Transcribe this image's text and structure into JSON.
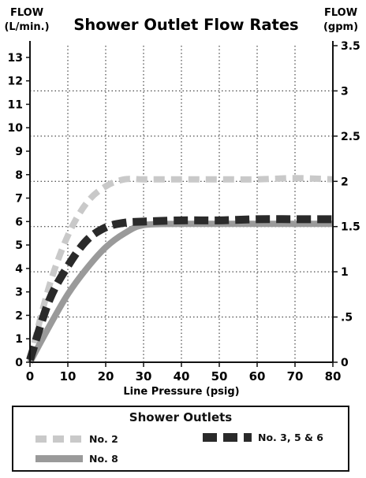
{
  "chart_data": {
    "type": "line",
    "title": "Shower Outlet Flow Rates",
    "ylabel_left": [
      "FLOW",
      "(L/min.)"
    ],
    "ylabel_right": [
      "FLOW",
      "(gpm)"
    ],
    "xlabel": "Line Pressure (psig)",
    "xlim": [
      0,
      80
    ],
    "ylim_left": [
      0,
      13.5
    ],
    "ylim_right": [
      0,
      3.5
    ],
    "x_ticks": [
      "0",
      "10",
      "20",
      "30",
      "40",
      "50",
      "60",
      "70",
      "80"
    ],
    "y_ticks_left": [
      "0",
      "1",
      "2",
      "3",
      "4",
      "5",
      "6",
      "7",
      "8",
      "9",
      "10",
      "11",
      "12",
      "13"
    ],
    "y_ticks_right": [
      "0",
      ".5",
      "1",
      "1.5",
      "2",
      "2.5",
      "3",
      "3.5"
    ],
    "grid": "dotted",
    "legend_title": "Shower Outlets",
    "series": [
      {
        "name": "No. 2",
        "style": "light-dashed",
        "color": "#c9c9c9",
        "x": [
          0,
          5,
          10,
          15,
          20,
          25,
          30,
          40,
          50,
          60,
          70,
          80
        ],
        "y": [
          0.1,
          3.2,
          5.4,
          6.8,
          7.5,
          7.8,
          7.8,
          7.8,
          7.8,
          7.8,
          7.85,
          7.8
        ]
      },
      {
        "name": "No. 8",
        "style": "solid",
        "color": "#9a9a9a",
        "x": [
          0,
          5,
          10,
          15,
          20,
          25,
          30,
          40,
          50,
          60,
          70,
          80
        ],
        "y": [
          0.0,
          1.5,
          2.9,
          4.0,
          4.9,
          5.5,
          5.85,
          5.9,
          5.9,
          5.9,
          5.9,
          5.9
        ]
      },
      {
        "name": "No. 3, 5 & 6",
        "style": "dark-dashed",
        "color": "#2a2a2a",
        "x": [
          0,
          5,
          10,
          15,
          20,
          25,
          30,
          40,
          50,
          60,
          70,
          80
        ],
        "y": [
          0.1,
          2.6,
          4.1,
          5.2,
          5.75,
          5.95,
          6.0,
          6.05,
          6.05,
          6.1,
          6.1,
          6.1
        ]
      }
    ]
  }
}
